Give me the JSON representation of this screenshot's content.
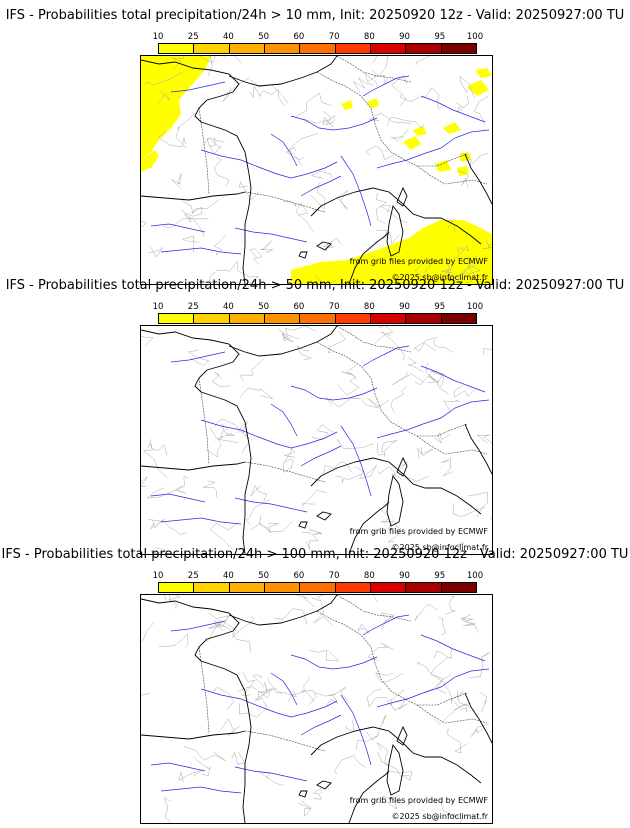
{
  "panels": [
    {
      "title": "IFS - Probabilities total precipitation/24h > 10 mm, Init: 20250920 12z - Valid: 20250927:00 TU",
      "has_precip": true
    },
    {
      "title": "IFS - Probabilities total precipitation/24h > 50 mm, Init: 20250920 12z - Valid: 20250927:00 TU",
      "has_precip": false
    },
    {
      "title": "IFS - Probabilities total precipitation/24h > 100 mm, Init: 20250920 12z - Valid: 20250927:00 TU",
      "has_precip": false
    }
  ],
  "colorbar": {
    "ticks": [
      "10",
      "25",
      "40",
      "50",
      "60",
      "70",
      "80",
      "90",
      "95",
      "100"
    ],
    "colors": [
      "#ffff00",
      "#ffd400",
      "#ffb000",
      "#ff9200",
      "#ff7000",
      "#ff3b00",
      "#d90000",
      "#a80000",
      "#7a0000"
    ]
  },
  "credits": {
    "source": "from grib files provided by ECMWF",
    "copyright": "©2025 sb@infoclimat.fr"
  }
}
